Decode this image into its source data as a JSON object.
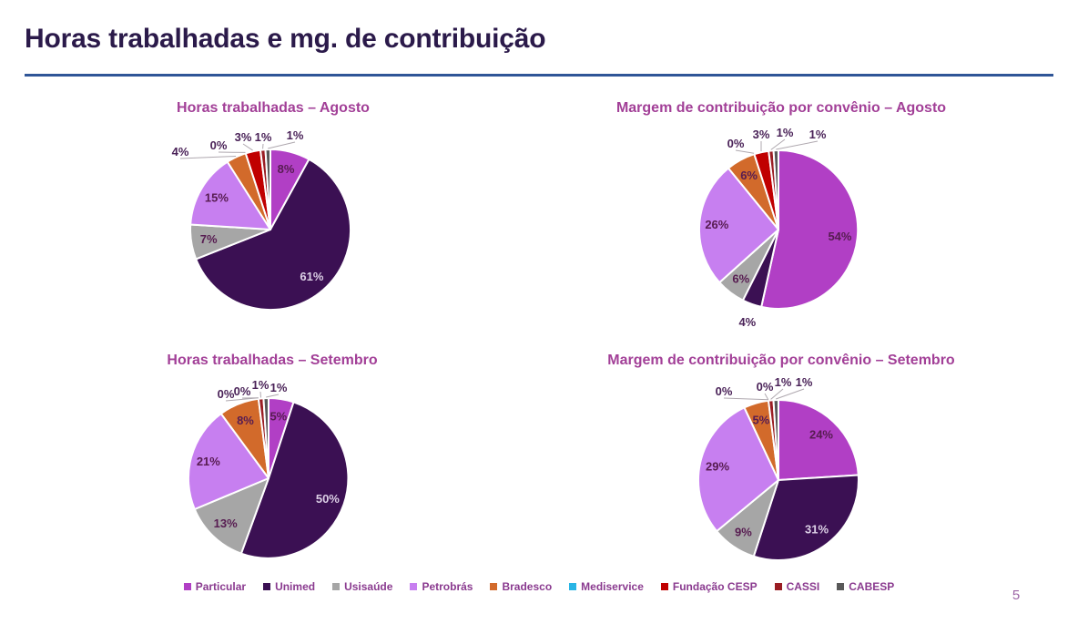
{
  "page": {
    "title": "Horas trabalhadas e mg. de contribuição",
    "page_number": "5",
    "title_color": "#2B1A4A",
    "rule_color": "#2F5597"
  },
  "legend": {
    "position": "bottom",
    "items": [
      {
        "label": "Particular",
        "color": "#B13FC5"
      },
      {
        "label": "Unimed",
        "color": "#3B1053"
      },
      {
        "label": "Usisaúde",
        "color": "#A6A6A6"
      },
      {
        "label": "Petrobrás",
        "color": "#C77FF0"
      },
      {
        "label": "Bradesco",
        "color": "#D26A2B"
      },
      {
        "label": "Mediservice",
        "color": "#29B5E5"
      },
      {
        "label": "Fundação CESP",
        "color": "#C00000"
      },
      {
        "label": "CASSI",
        "color": "#9A1D23"
      },
      {
        "label": "CABESP",
        "color": "#595959"
      }
    ]
  },
  "chart_data": [
    {
      "type": "pie",
      "title": "Horas trabalhadas – Agosto",
      "categories": [
        "Particular",
        "Unimed",
        "Usisaúde",
        "Petrobrás",
        "Bradesco",
        "Mediservice",
        "Fundação CESP",
        "CASSI",
        "CABESP"
      ],
      "values": [
        8,
        61,
        7,
        15,
        4,
        0,
        3,
        1,
        1
      ],
      "labels": [
        "8%",
        "61%",
        "7%",
        "15%",
        "4%",
        "0%",
        "3%",
        "1%",
        "1%"
      ],
      "start_angle": "top",
      "direction": "clockwise",
      "legend_position": "bottom"
    },
    {
      "type": "pie",
      "title": "Margem de contribuição por convênio – Agosto",
      "categories": [
        "Particular",
        "Unimed",
        "Usisaúde",
        "Petrobrás",
        "Bradesco",
        "Mediservice",
        "Fundação CESP",
        "CASSI",
        "CABESP"
      ],
      "values": [
        54,
        4,
        6,
        26,
        6,
        0,
        3,
        1,
        1
      ],
      "labels": [
        "54%",
        "4%",
        "6%",
        "26%",
        "6%",
        "0%",
        "3%",
        "1%",
        "1%"
      ],
      "start_angle": "top",
      "direction": "clockwise",
      "legend_position": "bottom"
    },
    {
      "type": "pie",
      "title": "Horas trabalhadas – Setembro",
      "categories": [
        "Particular",
        "Unimed",
        "Usisaúde",
        "Petrobrás",
        "Bradesco",
        "Mediservice",
        "Fundação CESP",
        "CASSI",
        "CABESP"
      ],
      "values": [
        5,
        50,
        13,
        21,
        8,
        0,
        0,
        1,
        1
      ],
      "labels": [
        "5%",
        "50%",
        "13%",
        "21%",
        "8%",
        "0%",
        "0%",
        "1%",
        "1%"
      ],
      "start_angle": "top",
      "direction": "clockwise",
      "legend_position": "bottom"
    },
    {
      "type": "pie",
      "title": "Margem de contribuição por convênio – Setembro",
      "categories": [
        "Particular",
        "Unimed",
        "Usisaúde",
        "Petrobrás",
        "Bradesco",
        "Mediservice",
        "Fundação CESP",
        "CASSI",
        "CABESP"
      ],
      "values": [
        24,
        31,
        9,
        29,
        5,
        0,
        0,
        1,
        1
      ],
      "labels": [
        "24%",
        "31%",
        "9%",
        "29%",
        "5%",
        "0%",
        "0%",
        "1%",
        "1%"
      ],
      "start_angle": "top",
      "direction": "clockwise",
      "legend_position": "bottom"
    }
  ]
}
